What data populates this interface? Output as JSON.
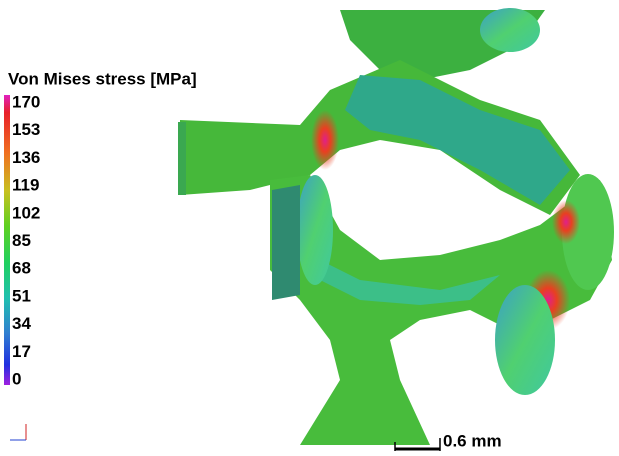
{
  "legend": {
    "title": "Von Mises stress [MPa]",
    "ticks": [
      170,
      153,
      136,
      119,
      102,
      85,
      68,
      51,
      34,
      17,
      0
    ]
  },
  "scale_bar": {
    "label": "0.6 mm"
  }
}
